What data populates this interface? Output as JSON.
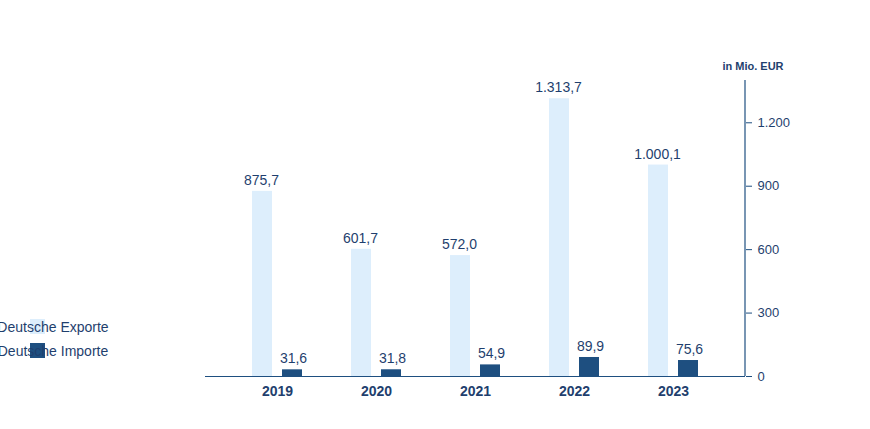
{
  "chart_data": {
    "type": "bar",
    "categories": [
      "2019",
      "2020",
      "2021",
      "2022",
      "2023"
    ],
    "series": [
      {
        "name": "Deutsche Exporte",
        "color": "#ddeefc",
        "values": [
          875.7,
          601.7,
          572.0,
          1313.7,
          1000.1
        ],
        "value_labels": [
          "875,7",
          "601,7",
          "572,0",
          "1.313,7",
          "1.000,1"
        ]
      },
      {
        "name": "Deutsche Importe",
        "color": "#1e4f80",
        "values": [
          31.6,
          31.8,
          54.9,
          89.9,
          75.6
        ],
        "value_labels": [
          "31,6",
          "31,8",
          "54,9",
          "89,9",
          "75,6"
        ]
      }
    ],
    "ylabel": "in Mio. EUR",
    "ylim": [
      0,
      1400
    ],
    "yticks": [
      0,
      300,
      600,
      900,
      {
        "value": 1200,
        "label": "1.200"
      }
    ],
    "grid": false,
    "data_labels": true,
    "legend": "bottom-left"
  }
}
